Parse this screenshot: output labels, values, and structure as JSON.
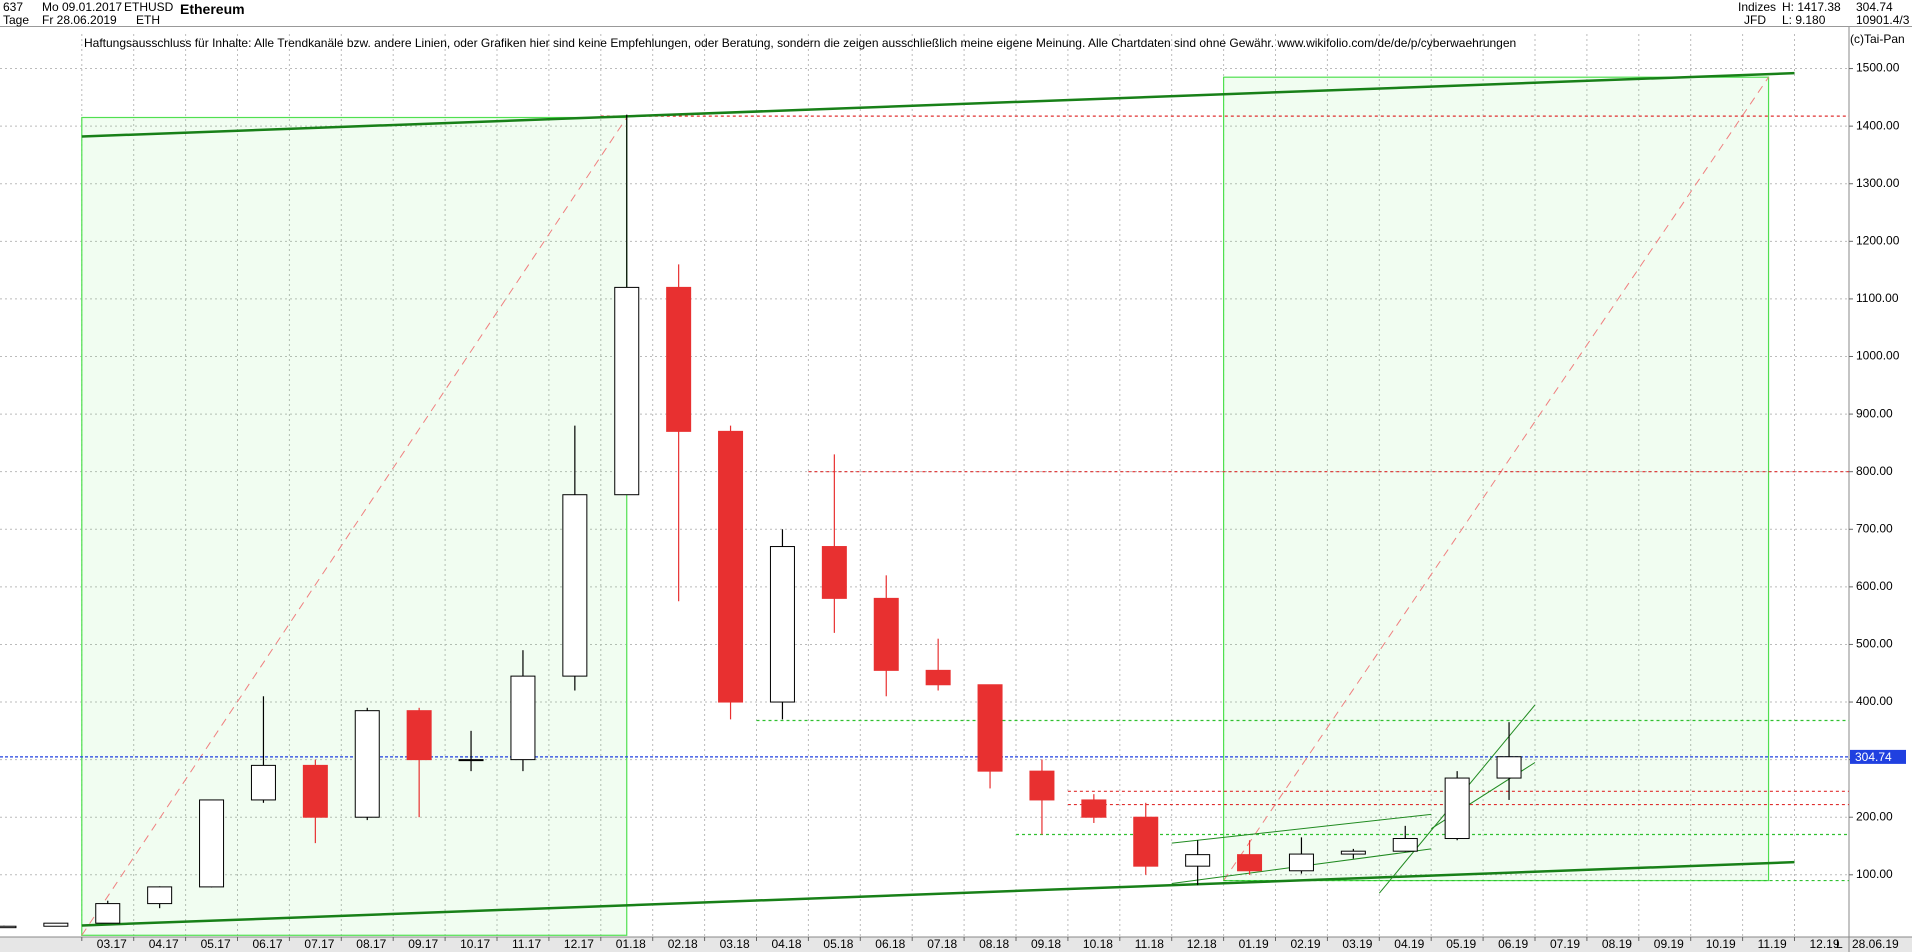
{
  "header": {
    "count": "637",
    "date_from": "Mo 09.01.2017",
    "date_to": "Fr 28.06.2019",
    "period": "Tage",
    "symbol": "ETHUSD",
    "short": "ETH",
    "name": "Ethereum",
    "group": "Indizes",
    "source": "JFD",
    "high": "H: 1417.38",
    "low": "L: 9.180",
    "last": "304.74",
    "extra": "10901.4/3",
    "disclaimer": "Haftungsausschluss für Inhalte: Alle Trendkanäle bzw. andere Linien, oder Grafiken hier sind keine Empfehlungen, oder Beratung, sondern die zeigen ausschließlich meine eigene Meinung. Alle Chartdaten sind ohne Gewähr.  www.wikifolio.com/de/de/p/cyberwaehrungen",
    "copyright": "(c)Tai-Pan",
    "end_date": "28.06.19",
    "scale_mode": "L"
  },
  "chart_data": {
    "type": "candlestick",
    "title": "Ethereum",
    "categories": [
      null,
      null,
      "03.17",
      "04.17",
      "05.17",
      "06.17",
      "07.17",
      "08.17",
      "09.17",
      "10.17",
      "11.17",
      "12.17",
      "01.18",
      "02.18",
      "03.18",
      "04.18",
      "05.18",
      "06.18",
      "07.18",
      "08.18",
      "09.18",
      "10.18",
      "11.18",
      "12.18",
      "01.19",
      "02.19",
      "03.19",
      "04.19",
      "05.19",
      "06.19",
      "07.19",
      "08.19",
      "09.19",
      "10.19",
      "11.19",
      "12.19"
    ],
    "open": [
      8.2,
      10.7,
      16,
      50,
      79,
      230,
      290,
      200,
      385,
      300,
      300,
      445,
      760,
      1120,
      870,
      400,
      670,
      580,
      455,
      430,
      280,
      230,
      200,
      115,
      135,
      107,
      136,
      141,
      163,
      268,
      null,
      null,
      null,
      null,
      null,
      null
    ],
    "high": [
      11.5,
      16,
      55,
      80,
      230,
      410,
      300,
      390,
      390,
      350,
      490,
      880,
      1420,
      1160,
      880,
      700,
      830,
      620,
      510,
      430,
      300,
      240,
      225,
      160,
      160,
      165,
      145,
      185,
      280,
      365,
      null,
      null,
      null,
      null,
      null,
      null
    ],
    "low": [
      7.9,
      10.3,
      16,
      42,
      78,
      225,
      155,
      195,
      200,
      280,
      280,
      420,
      760,
      575,
      370,
      370,
      520,
      410,
      420,
      250,
      170,
      190,
      100,
      82,
      100,
      102,
      128,
      140,
      160,
      230,
      null,
      null,
      null,
      null,
      null,
      null
    ],
    "close": [
      10.7,
      16,
      50,
      79,
      230,
      290,
      200,
      385,
      300,
      300,
      445,
      760,
      1120,
      870,
      400,
      670,
      580,
      455,
      430,
      280,
      230,
      200,
      115,
      135,
      107,
      136,
      141,
      163,
      268,
      305,
      null,
      null,
      null,
      null,
      null,
      null
    ],
    "up_color": "#ffffff",
    "down_color": "#e83030",
    "ylim": [
      -8,
      1560
    ],
    "yticks": [
      {
        "value": 100,
        "label": "100.00"
      },
      {
        "value": 200,
        "label": "200.00"
      },
      {
        "value": 300,
        "label": "300.00"
      },
      {
        "value": 400,
        "label": "400.00"
      },
      {
        "value": 500,
        "label": "500.00"
      },
      {
        "value": 600,
        "label": "600.00"
      },
      {
        "value": 700,
        "label": "700.00"
      },
      {
        "value": 800,
        "label": "800.00"
      },
      {
        "value": 900,
        "label": "900.00"
      },
      {
        "value": 1000,
        "label": "1000.00"
      },
      {
        "value": 1100,
        "label": "1100.00"
      },
      {
        "value": 1200,
        "label": "1200.00"
      },
      {
        "value": 1300,
        "label": "1300.00"
      },
      {
        "value": 1400,
        "label": "1400.00"
      },
      {
        "value": 1500,
        "label": "1500.00"
      }
    ],
    "grid": true,
    "last_price": 304.74,
    "last_color": "#2040e0",
    "hlines": [
      {
        "value": 1417.38,
        "color": "#e03030",
        "start": "01.18"
      },
      {
        "value": 800,
        "color": "#e03030",
        "start": "05.18"
      },
      {
        "value": 368,
        "color": "#30c030",
        "start": "04.18"
      },
      {
        "value": 245,
        "color": "#e03030",
        "start": "10.18"
      },
      {
        "value": 222,
        "color": "#e03030",
        "start": "10.18"
      },
      {
        "value": 170,
        "color": "#30c030",
        "start": "09.18"
      },
      {
        "value": 90,
        "color": "#30c030",
        "start": "01.19"
      }
    ],
    "zones": [
      {
        "x": [
          "03.17",
          "01.18"
        ],
        "y": [
          1415,
          -5
        ],
        "color": "#50e050"
      },
      {
        "x": [
          "01.19",
          "11.19"
        ],
        "y": [
          1485,
          90
        ],
        "color": "#50e050"
      }
    ],
    "channel": [
      {
        "x": [
          "03.17",
          "12.19"
        ],
        "y": [
          1382,
          1492
        ],
        "color": "#188018"
      },
      {
        "x": [
          "03.17",
          "12.19"
        ],
        "y": [
          12,
          122
        ],
        "color": "#188018"
      }
    ],
    "trendlines": [
      {
        "x": [
          "04.19",
          "07.19"
        ],
        "y": [
          68,
          395
        ],
        "color": "#208a20"
      },
      {
        "x": [
          "05.19",
          "07.19"
        ],
        "y": [
          180,
          295
        ],
        "color": "#208a20"
      },
      {
        "x": [
          "12.18",
          "05.19"
        ],
        "y": [
          155,
          205
        ],
        "color": "#208a20"
      },
      {
        "x": [
          "12.18",
          "05.19"
        ],
        "y": [
          85,
          145
        ],
        "color": "#208a20"
      }
    ]
  }
}
